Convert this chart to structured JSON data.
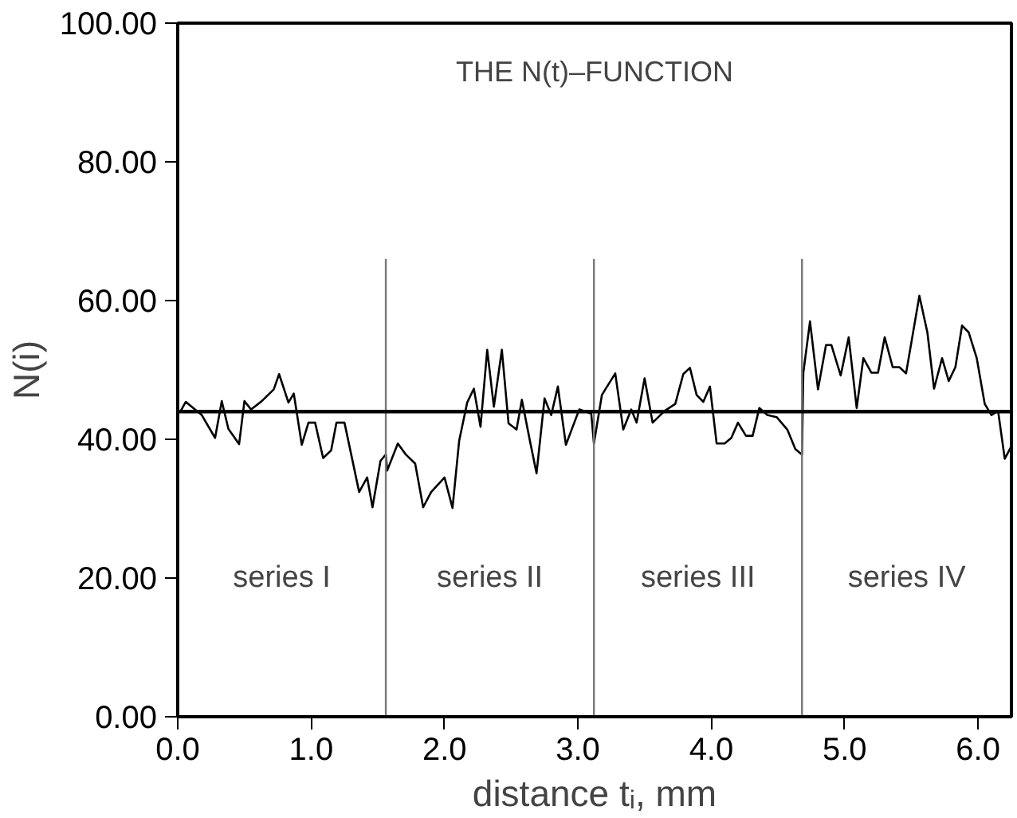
{
  "chart_data": {
    "type": "line",
    "title": "THE N(t)–FUNCTION",
    "xlabel": "distance tᵢ, mm",
    "ylabel": "N(i)",
    "x": [
      0.02,
      0.06,
      0.18,
      0.28,
      0.33,
      0.38,
      0.46,
      0.5,
      0.55,
      0.63,
      0.72,
      0.76,
      0.83,
      0.87,
      0.93,
      0.98,
      1.03,
      1.09,
      1.15,
      1.19,
      1.25,
      1.36,
      1.42,
      1.46,
      1.52,
      1.56,
      1.57,
      1.65,
      1.71,
      1.78,
      1.84,
      1.9,
      2.0,
      2.06,
      2.11,
      2.17,
      2.22,
      2.27,
      2.32,
      2.37,
      2.43,
      2.48,
      2.54,
      2.58,
      2.64,
      2.69,
      2.75,
      2.8,
      2.85,
      2.91,
      3.01,
      3.07,
      3.1,
      3.12,
      3.18,
      3.28,
      3.34,
      3.4,
      3.44,
      3.5,
      3.56,
      3.65,
      3.73,
      3.79,
      3.84,
      3.89,
      3.94,
      3.99,
      4.04,
      4.1,
      4.15,
      4.2,
      4.26,
      4.31,
      4.36,
      4.42,
      4.49,
      4.57,
      4.63,
      4.68,
      4.69,
      4.74,
      4.8,
      4.86,
      4.9,
      4.97,
      5.03,
      5.09,
      5.14,
      5.2,
      5.25,
      5.3,
      5.36,
      5.41,
      5.46,
      5.56,
      5.62,
      5.67,
      5.73,
      5.78,
      5.83,
      5.88,
      5.93,
      5.99,
      6.05,
      6.1,
      6.15,
      6.2,
      6.25
    ],
    "series": [
      {
        "color": "#000000",
        "values": [
          44,
          45.4,
          43.5,
          40.2,
          45.5,
          41.5,
          39.3,
          45.5,
          44.3,
          45.5,
          47.2,
          49.4,
          45.3,
          46.6,
          39.2,
          42.4,
          42.4,
          37.3,
          38.4,
          42.4,
          42.4,
          32.4,
          34.5,
          30.2,
          36.9,
          37.8,
          35.5,
          39.4,
          37.8,
          36.5,
          30.2,
          32.4,
          34.5,
          30.1,
          39.8,
          45.3,
          47.3,
          41.8,
          52.9,
          44.7,
          52.9,
          42.3,
          41.4,
          45.7,
          39.8,
          35.1,
          45.9,
          43.5,
          47.6,
          39.2,
          44.3,
          43.9,
          43.7,
          39.4,
          46.4,
          49.5,
          41.4,
          44.3,
          42.4,
          48.8,
          42.4,
          44.1,
          45.1,
          49.4,
          50.3,
          46.4,
          45.4,
          47.6,
          39.4,
          39.4,
          40.2,
          42.4,
          40.5,
          40.5,
          44.5,
          43.5,
          43.2,
          41.4,
          38.6,
          37.8,
          49.6,
          57,
          47.2,
          53.6,
          53.6,
          49.2,
          54.7,
          44.5,
          51.7,
          49.6,
          49.6,
          54.7,
          50.4,
          50.4,
          49.5,
          60.7,
          55.4,
          47.3,
          51.7,
          48.4,
          50.4,
          56.4,
          55.4,
          51.7,
          45.1,
          43.5,
          44.1,
          37.2,
          39
        ]
      }
    ],
    "xlim": [
      0,
      6.25
    ],
    "ylim": [
      0,
      100
    ],
    "xticks": [
      {
        "value": 0,
        "label": "0.0"
      },
      {
        "value": 1,
        "label": "1.0"
      },
      {
        "value": 2,
        "label": "2.0"
      },
      {
        "value": 3,
        "label": "3.0"
      },
      {
        "value": 4,
        "label": "4.0"
      },
      {
        "value": 5,
        "label": "5.0"
      },
      {
        "value": 6,
        "label": "6.0"
      }
    ],
    "yticks": [
      {
        "value": 0,
        "label": "0.00"
      },
      {
        "value": 20,
        "label": "20.00"
      },
      {
        "value": 40,
        "label": "40.00"
      },
      {
        "value": 60,
        "label": "60.00"
      },
      {
        "value": 80,
        "label": "80.00"
      },
      {
        "value": 100,
        "label": "100.00"
      }
    ],
    "ref_lines": [
      {
        "axis": "y",
        "value": 44,
        "color": "#000000"
      },
      {
        "axis": "x",
        "value": 1.56,
        "color": "#777777"
      },
      {
        "axis": "x",
        "value": 3.12,
        "color": "#777777"
      },
      {
        "axis": "x",
        "value": 4.68,
        "color": "#777777"
      }
    ],
    "annotations": [
      "series I",
      "series II",
      "series III",
      "series IV"
    ],
    "grid": false,
    "marker": "none",
    "line_style": "solid"
  }
}
